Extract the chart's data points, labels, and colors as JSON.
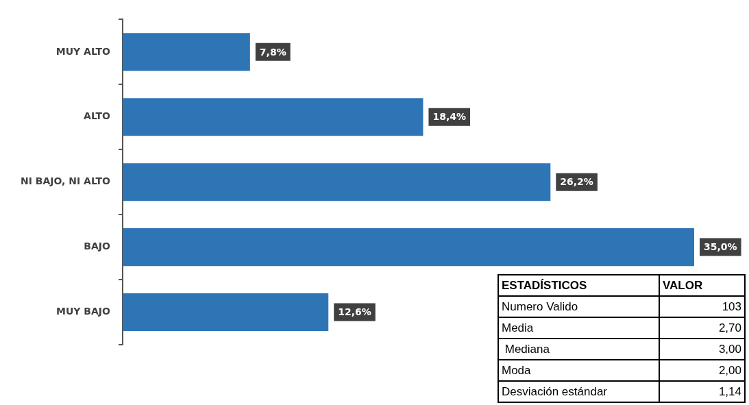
{
  "chart_data": {
    "type": "bar",
    "orientation": "horizontal",
    "categories": [
      "MUY ALTO",
      "ALTO",
      "NI BAJO, NI ALTO",
      "BAJO",
      "MUY BAJO"
    ],
    "values": [
      7.8,
      18.4,
      26.2,
      35.0,
      12.6
    ],
    "value_labels": [
      "7,8%",
      "18,4%",
      "26,2%",
      "35,0%",
      "12,6%"
    ],
    "color": "#2e75b6",
    "grid": false,
    "legend": false,
    "tick_labels": "y",
    "annotations": [
      "ESTADÍSTICOS",
      "VALOR",
      "Numero Valido",
      "103",
      "Media",
      "2,70",
      " Mediana",
      "3,00",
      "Moda",
      "2,00",
      "Desviación estándar",
      "1,14"
    ]
  }
}
